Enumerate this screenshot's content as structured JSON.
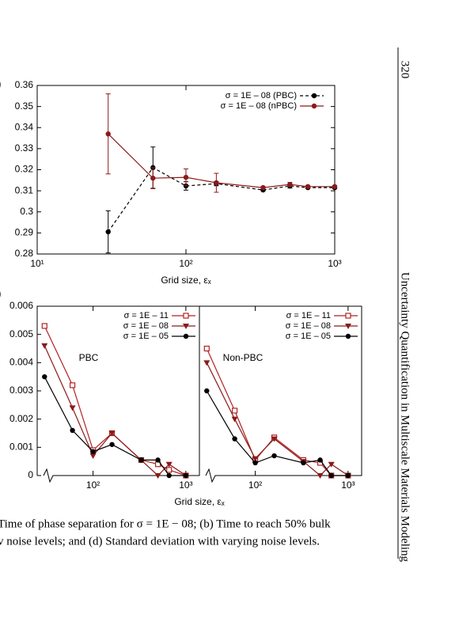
{
  "page_number": "320",
  "running_head": "Uncertainty Quantification in Multiscale Materials Modeling",
  "caption": [
    "Time of phase separation for σ = 1E − 08; (b) Time to reach 50% bulk",
    "v noise levels; and (d) Standard deviation with varying noise levels."
  ],
  "chart_data": [
    {
      "type": "line",
      "panel_label": ")",
      "xlabel": "Grid size, εₓ",
      "log_x": true,
      "legend": "upper right",
      "xlim": [
        10,
        1000
      ],
      "xticks": [
        {
          "value": 10,
          "label": "10¹"
        },
        {
          "value": 100,
          "label": "10²"
        },
        {
          "value": 1000,
          "label": "10³"
        }
      ],
      "ylim": [
        0.28,
        0.36
      ],
      "yticks": [
        0.28,
        0.29,
        0.3,
        0.31,
        0.32,
        0.33,
        0.34,
        0.35,
        0.36
      ],
      "x": [
        30,
        60,
        100,
        160,
        330,
        500,
        660,
        1000
      ],
      "series": [
        {
          "name": "σ = 1E – 08 (PBC)",
          "color": "#000000",
          "marker": "circle",
          "dash": true,
          "values": [
            0.2905,
            0.321,
            0.3123,
            0.3134,
            0.3104,
            0.3123,
            0.3115,
            0.3115
          ],
          "errors": [
            0.01,
            0.0098,
            0.002,
            0.001,
            0.0005,
            0.001,
            0.0005,
            0.0005
          ]
        },
        {
          "name": "σ = 1E – 08 (nPBC)",
          "color": "#8b1a1a",
          "marker": "circle",
          "dash": false,
          "values": [
            0.337,
            0.316,
            0.3164,
            0.3138,
            0.3115,
            0.313,
            0.312,
            0.312
          ],
          "errors": [
            0.019,
            0.005,
            0.004,
            0.0045,
            0.0005,
            0.001,
            0.0005,
            0.0005
          ]
        }
      ]
    },
    {
      "type": "line",
      "panel_label": ")",
      "xlabel": "Grid size, εₓ",
      "log_x": true,
      "legend": "upper right",
      "ylim": [
        0,
        0.006
      ],
      "yticks": [
        0,
        0.001,
        0.002,
        0.003,
        0.004,
        0.005,
        0.006
      ],
      "panels": [
        {
          "annotation": "PBC",
          "xlim": [
            25,
            1400
          ],
          "xticks": [
            {
              "value": 100,
              "label": "10²"
            },
            {
              "value": 1000,
              "label": "10³"
            }
          ],
          "x": [
            30,
            60,
            100,
            160,
            330,
            500,
            660,
            1000
          ],
          "series": [
            {
              "name": "σ = 1E – 11",
              "color": "#b22222",
              "marker": "square-open",
              "values": [
                0.0053,
                0.0032,
                0.0009,
                0.0015,
                0.00055,
                0.0004,
                0.0002,
                0
              ]
            },
            {
              "name": "σ = 1E – 08",
              "color": "#8b1a1a",
              "marker": "triangle-down",
              "values": [
                0.0046,
                0.0024,
                0.0007,
                0.0015,
                0.00055,
                0,
                0.0004,
                0
              ]
            },
            {
              "name": "σ = 1E – 05",
              "color": "#000000",
              "marker": "circle",
              "values": [
                0.0035,
                0.0016,
                0.00085,
                0.0011,
                0.00055,
                0.00055,
                0,
                0
              ]
            }
          ]
        },
        {
          "annotation": "Non-PBC",
          "xlim": [
            25,
            1400
          ],
          "xticks": [
            {
              "value": 100,
              "label": "10²"
            },
            {
              "value": 1000,
              "label": "10³"
            }
          ],
          "x": [
            30,
            60,
            100,
            160,
            330,
            500,
            660,
            1000
          ],
          "series": [
            {
              "name": "σ = 1E – 11",
              "color": "#b22222",
              "marker": "square-open",
              "values": [
                0.0045,
                0.0023,
                0.00055,
                0.00135,
                0.00055,
                0.00045,
                0,
                0
              ]
            },
            {
              "name": "σ = 1E – 08",
              "color": "#8b1a1a",
              "marker": "triangle-down",
              "values": [
                0.004,
                0.002,
                0.0006,
                0.0013,
                0.0005,
                0,
                0.0004,
                0
              ]
            },
            {
              "name": "σ = 1E – 05",
              "color": "#000000",
              "marker": "circle",
              "values": [
                0.003,
                0.0013,
                0.00045,
                0.0007,
                0.00045,
                0.00055,
                0,
                0
              ]
            }
          ]
        }
      ]
    }
  ]
}
